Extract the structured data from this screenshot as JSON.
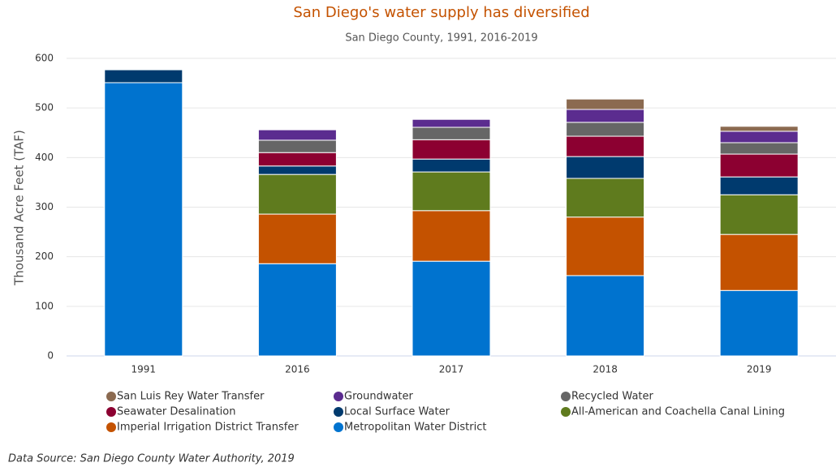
{
  "chart_data": {
    "type": "stacked_bar",
    "title": "San Diego's water supply has diversified",
    "subtitle": "San Diego County, 1991, 2016-2019",
    "y_label": "Thousand Acre Feet (TAF)",
    "source": "Data Source: San Diego County Water Authority, 2019",
    "categories": [
      "1991",
      "2016",
      "2017",
      "2018",
      "2019"
    ],
    "ylim": [
      0,
      600
    ],
    "yticks": [
      0,
      100,
      200,
      300,
      400,
      500,
      600
    ],
    "grid": true,
    "series": [
      {
        "name": "Metropolitan Water District",
        "color": "#0073cf",
        "values": [
          551,
          186,
          191,
          162,
          132
        ]
      },
      {
        "name": "Imperial Irrigation District Transfer",
        "color": "#c45200",
        "values": [
          0,
          100,
          102,
          118,
          113
        ]
      },
      {
        "name": "All-American and Coachella Canal Lining",
        "color": "#5f7b1e",
        "values": [
          0,
          80,
          78,
          78,
          80
        ]
      },
      {
        "name": "Local Surface Water",
        "color": "#003a6e",
        "values": [
          26,
          17,
          26,
          44,
          36
        ]
      },
      {
        "name": "Seawater Desalination",
        "color": "#8c0031",
        "values": [
          0,
          27,
          39,
          41,
          46
        ]
      },
      {
        "name": "Recycled Water",
        "color": "#666666",
        "values": [
          0,
          25,
          25,
          28,
          23
        ]
      },
      {
        "name": "Groundwater",
        "color": "#5b2c8f",
        "values": [
          0,
          21,
          16,
          26,
          23
        ]
      },
      {
        "name": "San Luis Rey Water Transfer",
        "color": "#8b6a50",
        "values": [
          0,
          0,
          0,
          21,
          10
        ]
      }
    ]
  }
}
